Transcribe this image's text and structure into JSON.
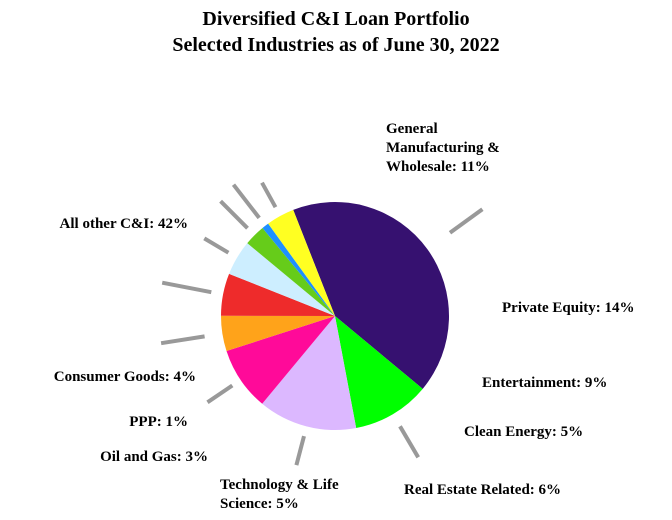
{
  "chart_data": {
    "type": "pie",
    "title": "Diversified C&I Loan Portfolio",
    "subtitle": "Selected Industries as of June 30, 2022",
    "unit": "%",
    "slices": [
      {
        "label": [
          "All other C&I: 42%"
        ],
        "value": 42,
        "color": "#361170"
      },
      {
        "label": [
          "General",
          "Manufacturing &",
          "Wholesale: 11%"
        ],
        "value": 11,
        "color": "#00ff00"
      },
      {
        "label": [
          "Private Equity: 14%"
        ],
        "value": 14,
        "color": "#dcb8ff"
      },
      {
        "label": [
          "Entertainment: 9%"
        ],
        "value": 9,
        "color": "#ff0a99"
      },
      {
        "label": [
          "Clean Energy: 5%"
        ],
        "value": 5,
        "color": "#ffa31a"
      },
      {
        "label": [
          "Real Estate Related: 6%"
        ],
        "value": 6,
        "color": "#ee2b2b"
      },
      {
        "label": [
          "Technology & Life",
          "Science: 5%"
        ],
        "value": 5,
        "color": "#cdeeff"
      },
      {
        "label": [
          "Oil and Gas: 3%"
        ],
        "value": 3,
        "color": "#66cc1a"
      },
      {
        "label": [
          "PPP: 1%"
        ],
        "value": 1,
        "color": "#1e90ff"
      },
      {
        "label": [
          "Consumer Goods: 4%"
        ],
        "value": 4,
        "color": "#ffff22"
      }
    ],
    "leader_color": "#999999",
    "legend": "none"
  }
}
